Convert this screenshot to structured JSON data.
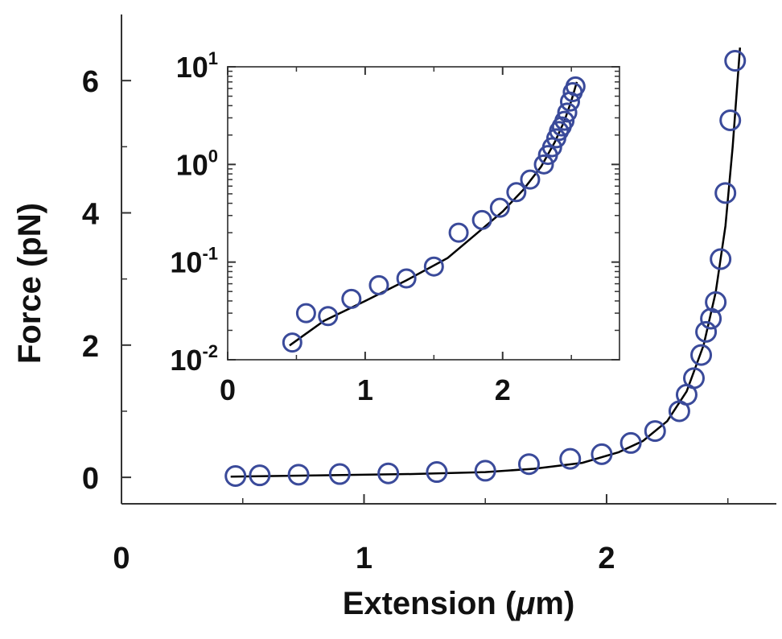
{
  "colors": {
    "marker": "#3a4a9a",
    "fit": "#000000",
    "axis": "#333333"
  },
  "chart_data": [
    {
      "type": "scatter",
      "xlabel_prefix": "Extension (",
      "xlabel_mu": "μ",
      "xlabel_suffix": "m)",
      "ylabel": "Force (pN)",
      "xlim": [
        0,
        2.7
      ],
      "ylim": [
        -0.4,
        7.0
      ],
      "xticks": [
        0,
        1,
        2
      ],
      "yticks": [
        0,
        2,
        4,
        6
      ],
      "legend": "none",
      "grid": false,
      "series": [
        {
          "marker": "open-circle",
          "x": [
            0.47,
            0.57,
            0.73,
            0.9,
            1.1,
            1.3,
            1.5,
            1.68,
            1.85,
            1.98,
            2.1,
            2.2,
            2.3,
            2.33,
            2.36,
            2.39,
            2.41,
            2.43,
            2.45,
            2.47,
            2.49,
            2.51,
            2.53
          ],
          "y": [
            0.02,
            0.03,
            0.04,
            0.05,
            0.06,
            0.08,
            0.1,
            0.2,
            0.28,
            0.35,
            0.52,
            0.7,
            1.0,
            1.25,
            1.5,
            1.85,
            2.2,
            2.4,
            2.65,
            3.3,
            4.3,
            5.4,
            6.3
          ]
        }
      ],
      "fit": {
        "x": [
          0.45,
          0.8,
          1.2,
          1.5,
          1.7,
          1.9,
          2.05,
          2.15,
          2.25,
          2.33,
          2.4,
          2.45,
          2.49,
          2.52,
          2.55
        ],
        "y": [
          0.01,
          0.03,
          0.05,
          0.08,
          0.13,
          0.22,
          0.38,
          0.55,
          0.85,
          1.3,
          2.0,
          2.8,
          3.8,
          5.0,
          6.5
        ]
      },
      "inset": {
        "yscale": "log",
        "xlim": [
          0,
          2.85
        ],
        "ylim": [
          0.01,
          10
        ],
        "xticks": [
          0,
          1,
          2
        ],
        "yticks": [
          {
            "base": "10",
            "exp": "-2",
            "value": 0.01
          },
          {
            "base": "10",
            "exp": "-1",
            "value": 0.1
          },
          {
            "base": "10",
            "exp": "0",
            "value": 1
          },
          {
            "base": "10",
            "exp": "1",
            "value": 10
          }
        ],
        "x": [
          0.47,
          0.57,
          0.73,
          0.9,
          1.1,
          1.3,
          1.5,
          1.68,
          1.85,
          1.98,
          2.1,
          2.2,
          2.3,
          2.33,
          2.36,
          2.39,
          2.41,
          2.43,
          2.45,
          2.47,
          2.49,
          2.51,
          2.53
        ],
        "y": [
          0.015,
          0.03,
          0.028,
          0.042,
          0.058,
          0.068,
          0.09,
          0.2,
          0.27,
          0.36,
          0.52,
          0.7,
          1.0,
          1.25,
          1.5,
          1.85,
          2.2,
          2.45,
          2.8,
          3.4,
          4.4,
          5.5,
          6.3
        ],
        "fit_x": [
          0.45,
          0.7,
          1.0,
          1.3,
          1.6,
          1.8,
          2.0,
          2.15,
          2.28,
          2.38,
          2.45,
          2.5,
          2.54
        ],
        "fit_y": [
          0.014,
          0.025,
          0.04,
          0.065,
          0.11,
          0.19,
          0.33,
          0.55,
          0.95,
          1.7,
          2.8,
          4.5,
          7.0
        ]
      }
    }
  ]
}
